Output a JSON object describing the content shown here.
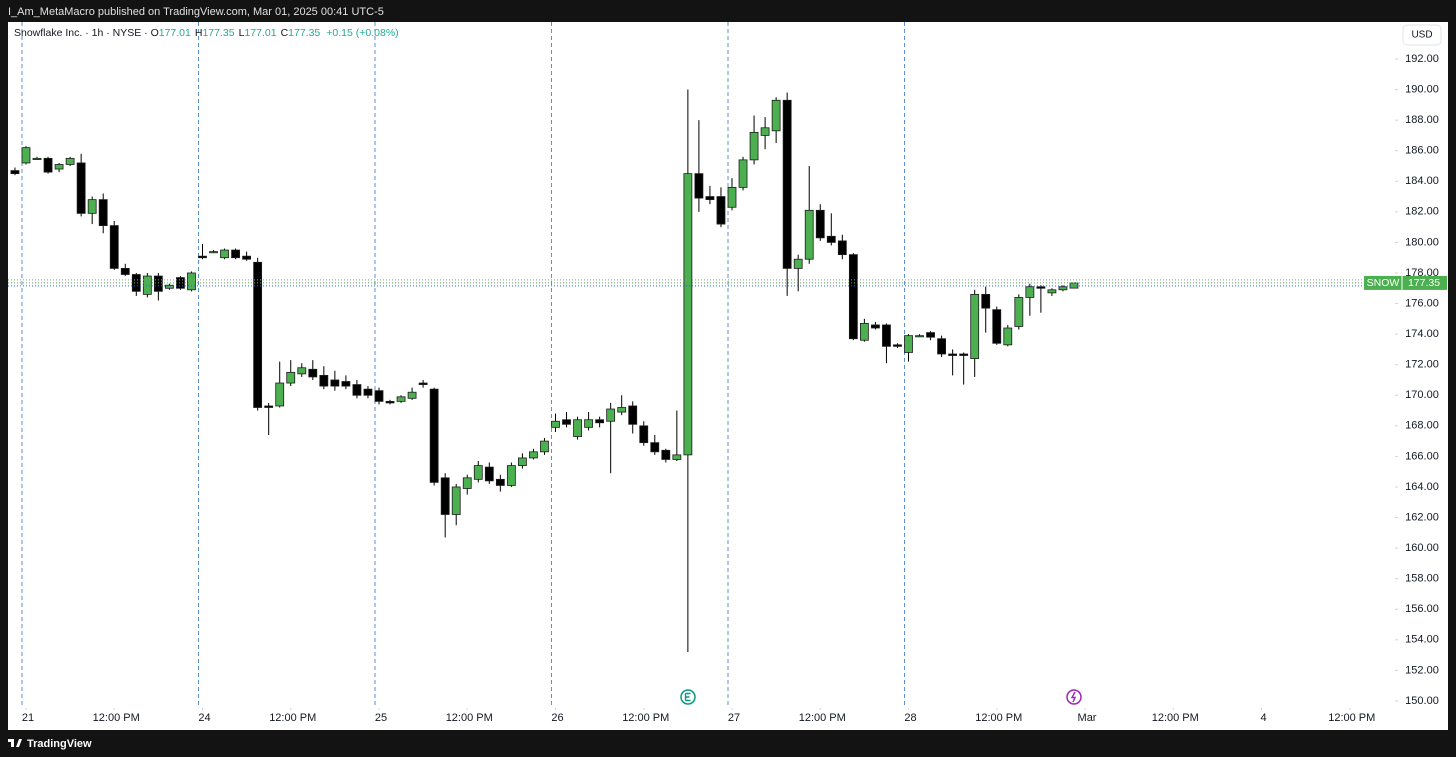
{
  "publisher_note": "I_Am_MetaMacro published on TradingView.com, Mar 01, 2025 00:41 UTC-5",
  "brand": "TradingView",
  "currency": "USD",
  "chart_data": {
    "type": "candlestick",
    "title": "Snowflake Inc. · 1h · NYSE",
    "legend": [
      {
        "key": "O",
        "value": 177.01
      },
      {
        "key": "H",
        "value": 177.35
      },
      {
        "key": "L",
        "value": 177.01
      },
      {
        "key": "C",
        "value": 177.35
      }
    ],
    "change": "+0.15 (+0.08%)",
    "last_price": {
      "symbol": "SNOW",
      "value": 177.35
    },
    "up_color": "#4caf50",
    "down_color": "#000000",
    "wick_color": "#000000",
    "separator_color": "#5b8fd6",
    "x": [
      -1,
      0,
      1,
      2,
      3,
      4,
      5,
      6,
      7,
      8,
      9,
      10,
      11,
      12,
      13,
      14,
      15,
      16,
      17,
      18,
      19,
      20,
      21,
      22,
      23,
      24,
      25,
      26,
      27,
      28,
      29,
      30,
      31,
      32,
      33,
      34,
      35,
      36,
      37,
      38,
      39,
      40,
      41,
      42,
      43,
      44,
      45,
      46,
      47,
      48,
      49,
      50,
      51,
      52,
      53,
      54,
      55,
      56,
      57,
      58,
      59,
      60,
      61,
      62,
      63,
      64,
      65,
      66,
      67,
      68,
      69,
      70,
      71,
      72,
      73,
      74,
      75,
      76,
      77,
      78,
      79,
      80,
      81,
      82,
      83,
      84,
      85,
      86,
      87,
      88,
      89,
      90,
      91,
      92,
      93,
      94,
      95
    ],
    "open": [
      184.7,
      185.2,
      185.5,
      185.5,
      184.8,
      185.1,
      185.2,
      181.9,
      182.8,
      181.1,
      178.3,
      177.9,
      176.6,
      177.8,
      177.0,
      177.7,
      176.9,
      179.1,
      179.4,
      179.0,
      179.5,
      179.1,
      178.7,
      169.3,
      169.3,
      170.8,
      171.4,
      171.7,
      171.3,
      171.0,
      170.9,
      170.7,
      170.4,
      170.3,
      169.6,
      169.6,
      169.8,
      170.8,
      170.4,
      164.6,
      162.2,
      163.9,
      164.5,
      165.3,
      164.5,
      164.1,
      165.4,
      165.9,
      166.3,
      167.9,
      168.4,
      167.3,
      167.9,
      168.4,
      168.3,
      168.9,
      169.3,
      168.0,
      166.9,
      166.4,
      165.8,
      166.1,
      184.5,
      183.0,
      183.0,
      182.3,
      183.6,
      185.4,
      187.0,
      187.3,
      189.3,
      178.3,
      178.9,
      182.1,
      180.4,
      180.1,
      179.2,
      173.6,
      174.6,
      174.6,
      173.3,
      172.8,
      173.9,
      174.1,
      173.7,
      172.7,
      172.7,
      172.4,
      176.6,
      175.6,
      173.3,
      174.5,
      176.4,
      177.1,
      176.7,
      176.9,
      177.01
    ],
    "high": [
      184.9,
      186.3,
      185.6,
      185.6,
      185.2,
      185.6,
      185.8,
      183.0,
      183.2,
      181.4,
      178.6,
      178.0,
      178.0,
      178.0,
      177.3,
      177.8,
      178.1,
      179.9,
      179.5,
      179.6,
      179.6,
      179.4,
      179.0,
      169.5,
      172.2,
      172.3,
      172.1,
      172.3,
      171.9,
      171.6,
      171.3,
      171.0,
      170.6,
      170.5,
      169.7,
      170.0,
      170.5,
      171.0,
      170.5,
      164.9,
      164.2,
      164.8,
      165.7,
      165.6,
      164.8,
      165.6,
      166.2,
      166.5,
      167.2,
      168.8,
      168.9,
      168.6,
      168.9,
      168.6,
      169.5,
      170.0,
      169.6,
      168.3,
      167.4,
      166.5,
      169.0,
      190.0,
      188.0,
      183.7,
      183.6,
      184.2,
      185.6,
      188.3,
      188.2,
      189.5,
      189.8,
      179.2,
      185.0,
      182.5,
      181.9,
      180.5,
      179.3,
      175.0,
      174.8,
      174.7,
      173.4,
      174.0,
      174.0,
      174.2,
      173.9,
      173.0,
      172.8,
      176.9,
      177.1,
      175.8,
      174.6,
      176.6,
      177.3,
      177.2,
      177.0,
      177.2,
      177.35
    ],
    "low": [
      184.4,
      185.1,
      185.4,
      184.5,
      184.6,
      185.0,
      181.7,
      181.2,
      180.6,
      178.2,
      177.8,
      176.5,
      176.4,
      176.2,
      176.9,
      176.9,
      176.8,
      178.9,
      179.3,
      178.9,
      178.9,
      178.8,
      169.0,
      167.4,
      169.2,
      170.6,
      171.2,
      171.0,
      170.4,
      170.3,
      170.4,
      169.8,
      169.8,
      169.4,
      169.4,
      169.5,
      169.7,
      170.5,
      164.1,
      160.7,
      161.5,
      163.5,
      164.3,
      164.2,
      163.7,
      164.0,
      165.2,
      165.8,
      166.1,
      167.6,
      167.9,
      167.1,
      167.7,
      167.9,
      164.9,
      168.7,
      167.5,
      166.7,
      166.1,
      165.6,
      165.7,
      153.2,
      182.0,
      182.5,
      181.0,
      182.1,
      183.4,
      185.1,
      186.1,
      186.5,
      176.5,
      176.8,
      178.6,
      180.1,
      179.8,
      178.9,
      173.6,
      173.5,
      174.3,
      172.1,
      173.1,
      172.2,
      173.8,
      173.6,
      172.5,
      171.3,
      170.7,
      171.2,
      174.1,
      173.3,
      173.2,
      174.3,
      175.2,
      175.4,
      176.5,
      176.8,
      177.01
    ],
    "close": [
      184.5,
      186.2,
      185.5,
      184.6,
      185.1,
      185.5,
      181.9,
      182.8,
      181.1,
      178.3,
      177.9,
      176.8,
      177.8,
      176.8,
      177.2,
      177.0,
      178.0,
      179.0,
      179.4,
      179.5,
      179.0,
      178.9,
      169.2,
      169.2,
      170.8,
      171.5,
      171.8,
      171.2,
      170.6,
      170.6,
      170.6,
      170.0,
      170.0,
      169.6,
      169.5,
      169.9,
      170.2,
      170.7,
      164.3,
      162.2,
      164.0,
      164.6,
      165.4,
      164.4,
      164.1,
      165.4,
      165.9,
      166.3,
      167.0,
      168.3,
      168.1,
      168.4,
      168.4,
      168.2,
      169.1,
      169.2,
      168.1,
      166.9,
      166.3,
      165.8,
      166.1,
      184.5,
      182.9,
      182.8,
      181.2,
      183.6,
      185.4,
      187.2,
      187.5,
      189.3,
      178.3,
      178.9,
      182.1,
      180.3,
      180.0,
      179.2,
      173.7,
      174.7,
      174.4,
      173.2,
      173.2,
      173.9,
      173.9,
      173.8,
      172.7,
      172.6,
      172.6,
      176.6,
      175.7,
      173.4,
      174.4,
      176.4,
      177.1,
      177.0,
      176.9,
      177.1,
      177.35
    ],
    "xlim": [
      -1.63,
      124.1
    ],
    "xticks": [
      {
        "value": 0,
        "label": "21"
      },
      {
        "value": 8,
        "label": "12:00 PM"
      },
      {
        "value": 16,
        "label": "24"
      },
      {
        "value": 24,
        "label": "12:00 PM"
      },
      {
        "value": 32,
        "label": "25"
      },
      {
        "value": 40,
        "label": "12:00 PM"
      },
      {
        "value": 48,
        "label": "26"
      },
      {
        "value": 56,
        "label": "12:00 PM"
      },
      {
        "value": 64,
        "label": "27"
      },
      {
        "value": 72,
        "label": "12:00 PM"
      },
      {
        "value": 80,
        "label": "28"
      },
      {
        "value": 88,
        "label": "12:00 PM"
      },
      {
        "value": 96,
        "label": "Mar"
      },
      {
        "value": 104,
        "label": "12:00 PM"
      },
      {
        "value": 112,
        "label": "4"
      },
      {
        "value": 120,
        "label": "12:00 PM"
      }
    ],
    "separators": [
      0,
      16,
      32,
      48,
      64,
      80
    ],
    "ylim": [
      149.54,
      194.42
    ],
    "yticks": [
      {
        "value": 150,
        "label": "150.00"
      },
      {
        "value": 152,
        "label": "152.00"
      },
      {
        "value": 154,
        "label": "154.00"
      },
      {
        "value": 156,
        "label": "156.00"
      },
      {
        "value": 158,
        "label": "158.00"
      },
      {
        "value": 160,
        "label": "160.00"
      },
      {
        "value": 162,
        "label": "162.00"
      },
      {
        "value": 164,
        "label": "164.00"
      },
      {
        "value": 166,
        "label": "166.00"
      },
      {
        "value": 168,
        "label": "168.00"
      },
      {
        "value": 170,
        "label": "170.00"
      },
      {
        "value": 172,
        "label": "172.00"
      },
      {
        "value": 174,
        "label": "174.00"
      },
      {
        "value": 176,
        "label": "176.00"
      },
      {
        "value": 178,
        "label": "178.00"
      },
      {
        "value": 180,
        "label": "180.00"
      },
      {
        "value": 182,
        "label": "182.00"
      },
      {
        "value": 184,
        "label": "184.00"
      },
      {
        "value": 186,
        "label": "186.00"
      },
      {
        "value": 188,
        "label": "188.00"
      },
      {
        "value": 190,
        "label": "190.00"
      },
      {
        "value": 192,
        "label": "192.00"
      }
    ]
  }
}
